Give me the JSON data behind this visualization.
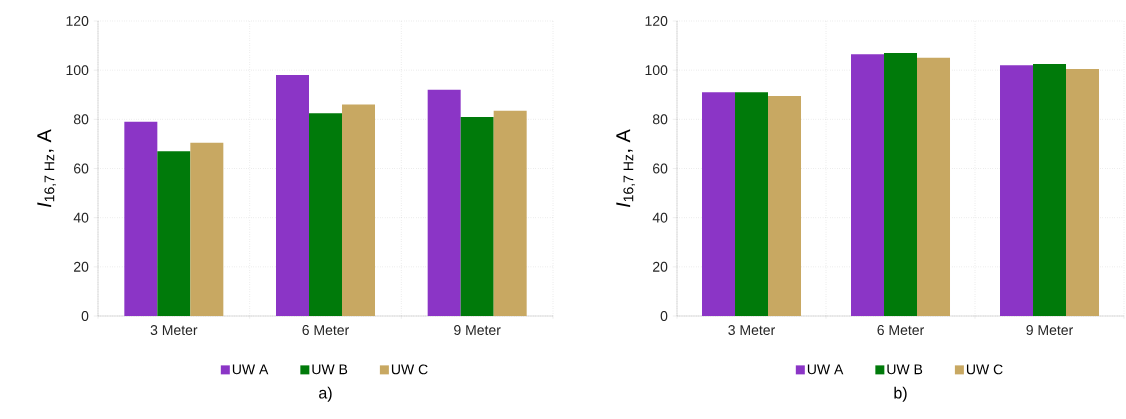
{
  "chart_data": [
    {
      "type": "bar",
      "categories": [
        "3 Meter",
        "6 Meter",
        "9 Meter"
      ],
      "ylabel": "*I*$_{16,7 Hz}$, A",
      "ylim": [
        0,
        120
      ],
      "yticks": [
        0,
        20,
        40,
        60,
        80,
        100,
        120
      ],
      "grid": true,
      "legend": "bottom",
      "annotations": [
        "a)"
      ],
      "series": [
        {
          "name": "UW A",
          "color": "#8b35c6",
          "values": [
            79,
            98,
            92
          ]
        },
        {
          "name": "UW B",
          "color": "#007a0a",
          "values": [
            67,
            82.5,
            81
          ]
        },
        {
          "name": "UW C",
          "color": "#c8a862",
          "values": [
            70.5,
            86,
            83.5
          ]
        }
      ]
    },
    {
      "type": "bar",
      "categories": [
        "3 Meter",
        "6 Meter",
        "9 Meter"
      ],
      "ylabel": "*I*$_{16,7 Hz}$, A",
      "ylim": [
        0,
        120
      ],
      "yticks": [
        0,
        20,
        40,
        60,
        80,
        100,
        120
      ],
      "grid": true,
      "legend": "bottom",
      "annotations": [
        "b)"
      ],
      "series": [
        {
          "name": "UW A",
          "color": "#8b35c6",
          "values": [
            91,
            106.5,
            102
          ]
        },
        {
          "name": "UW B",
          "color": "#007a0a",
          "values": [
            91,
            107,
            102.5
          ]
        },
        {
          "name": "UW C",
          "color": "#c8a862",
          "values": [
            89.5,
            105,
            100.5
          ]
        }
      ]
    }
  ]
}
